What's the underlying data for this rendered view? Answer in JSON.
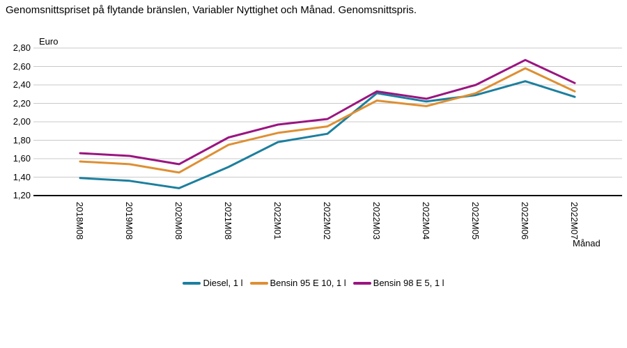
{
  "title": "Genomsnittspriset på flytande bränslen, Variabler Nyttighet och Månad. Genomsnittspris.",
  "chart_data": {
    "type": "line",
    "title": "Genomsnittspriset på flytande bränslen, Variabler Nyttighet och Månad. Genomsnittspris.",
    "ylabel": "Euro",
    "xlabel": "Månad",
    "categories": [
      "2018M08",
      "2019M08",
      "2020M08",
      "2021M08",
      "2022M01",
      "2022M02",
      "2022M03",
      "2022M04",
      "2022M05",
      "2022M06",
      "2022M07"
    ],
    "series": [
      {
        "name": "Diesel, 1 l",
        "color": "#1C7F9E",
        "values": [
          1.39,
          1.36,
          1.28,
          1.51,
          1.78,
          1.87,
          2.31,
          2.22,
          2.29,
          2.44,
          2.27
        ]
      },
      {
        "name": "Bensin 95 E 10, 1 l",
        "color": "#DE8F33",
        "values": [
          1.57,
          1.54,
          1.45,
          1.75,
          1.88,
          1.95,
          2.23,
          2.17,
          2.31,
          2.58,
          2.33
        ]
      },
      {
        "name": "Bensin 98 E 5, 1 l",
        "color": "#9A1580",
        "values": [
          1.66,
          1.63,
          1.54,
          1.83,
          1.97,
          2.03,
          2.33,
          2.25,
          2.4,
          2.67,
          2.42
        ]
      }
    ],
    "ylim": [
      1.2,
      2.8
    ],
    "ytick_step": 0.2,
    "ytick_labels": [
      "2,80",
      "2,60",
      "2,40",
      "2,20",
      "2,00",
      "1,80",
      "1,60",
      "1,40",
      "1,20"
    ],
    "grid": true,
    "grid_color": "#C8C8C8",
    "axis_color": "#000000",
    "legend_position": "bottom"
  }
}
